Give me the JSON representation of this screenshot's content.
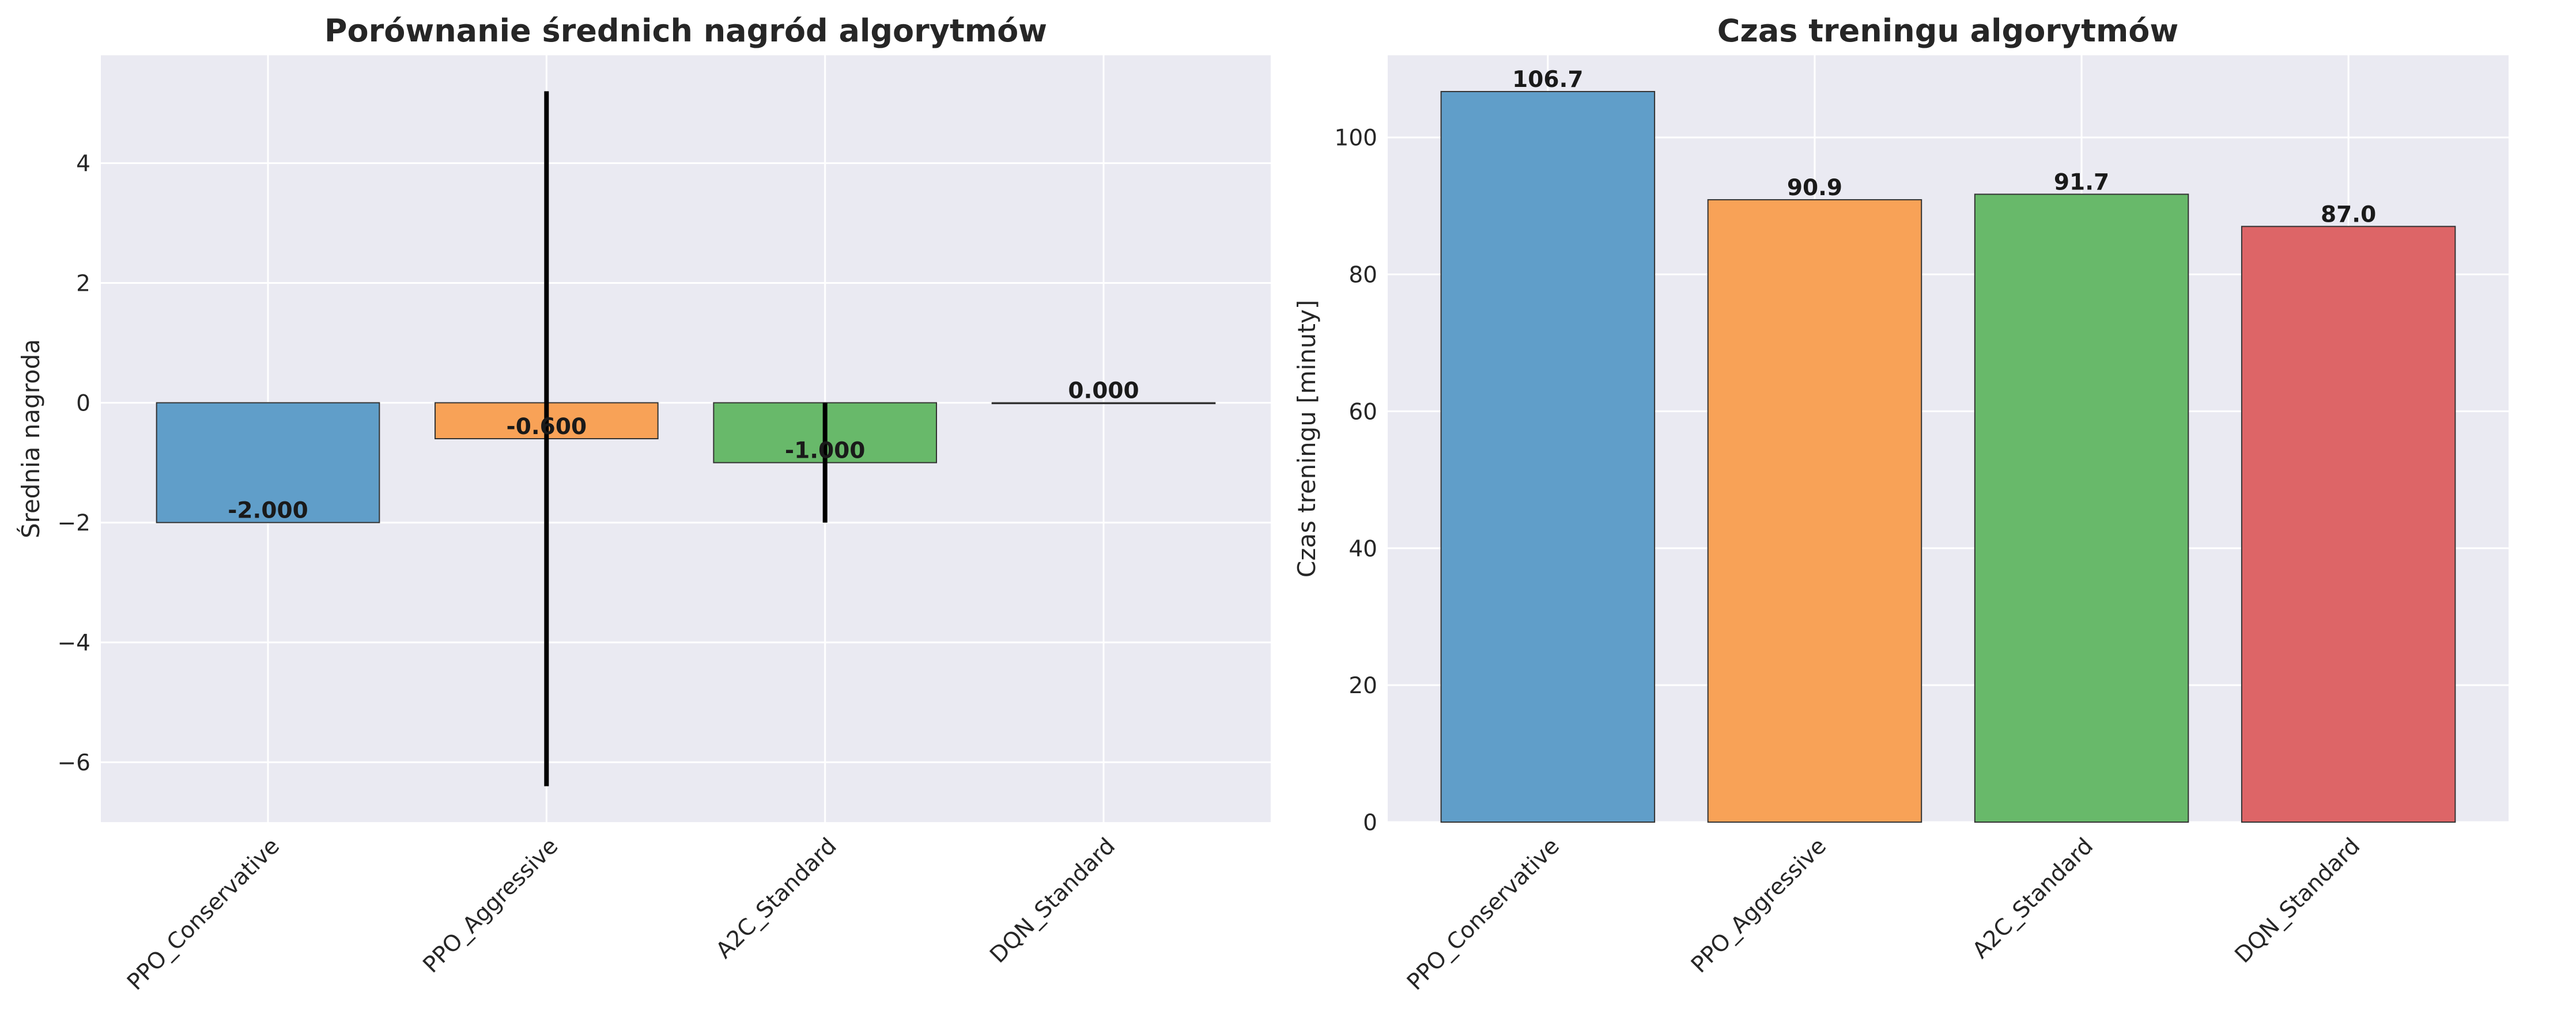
{
  "chart_data": [
    {
      "type": "bar",
      "title": "Porównanie średnich nagród algorytmów",
      "xlabel": "",
      "ylabel": "Średnia nagroda",
      "categories": [
        "PPO_Conservative",
        "PPO_Aggressive",
        "A2C_Standard",
        "DQN_Standard"
      ],
      "values": [
        -2.0,
        -0.6,
        -1.0,
        0.0
      ],
      "value_labels": [
        "-2.000",
        "-0.600",
        "-1.000",
        "0.000"
      ],
      "error_bars": [
        0.0,
        5.8,
        1.0,
        0.0
      ],
      "ylim": [
        -7.0,
        5.8
      ],
      "yticks": [
        -6,
        -4,
        -2,
        0,
        2,
        4
      ],
      "ytick_labels": [
        "−6",
        "−4",
        "−2",
        "0",
        "2",
        "4"
      ],
      "colors": [
        "#5b9bc7",
        "#f89f52",
        "#63b765",
        "#dc6062"
      ],
      "grid": true,
      "legend": "none"
    },
    {
      "type": "bar",
      "title": "Czas treningu algorytmów",
      "xlabel": "",
      "ylabel": "Czas treningu [minuty]",
      "categories": [
        "PPO_Conservative",
        "PPO_Aggressive",
        "A2C_Standard",
        "DQN_Standard"
      ],
      "values": [
        106.7,
        90.9,
        91.7,
        87.0
      ],
      "value_labels": [
        "106.7",
        "90.9",
        "91.7",
        "87.0"
      ],
      "ylim": [
        0,
        112
      ],
      "yticks": [
        0,
        20,
        40,
        60,
        80,
        100
      ],
      "ytick_labels": [
        "0",
        "20",
        "40",
        "60",
        "80",
        "100"
      ],
      "colors": [
        "#5b9bc7",
        "#f89f52",
        "#63b765",
        "#dc6062"
      ],
      "grid": true,
      "legend": "none"
    }
  ]
}
